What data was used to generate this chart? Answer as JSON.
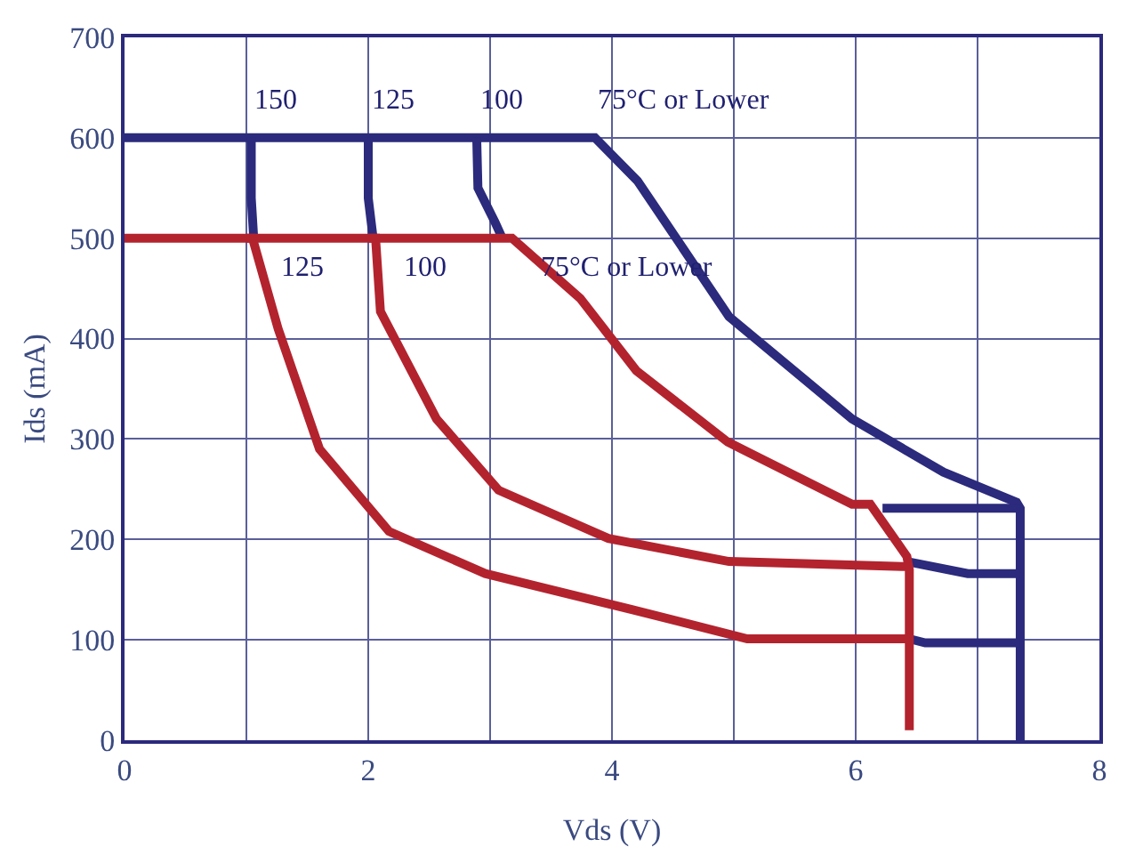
{
  "chart_data": {
    "type": "line",
    "xlabel": "Vds (V)",
    "ylabel": "Ids (mA)",
    "xlim": [
      0,
      8
    ],
    "ylim": [
      0,
      700
    ],
    "xticks": [
      0,
      {
        "value": 1,
        "label": null
      },
      2,
      {
        "value": 3,
        "label": null
      },
      4,
      {
        "value": 5,
        "label": null
      },
      6,
      {
        "value": 7,
        "label": null
      },
      8
    ],
    "yticks": [
      0,
      100,
      200,
      300,
      400,
      500,
      600,
      700
    ],
    "grid": true,
    "marker": "none",
    "line_style": "solid",
    "series": [
      {
        "color": "#2b2a7c",
        "x": [
          0,
          3.86,
          4.21,
          4.96,
          5.97,
          6.72,
          7.32,
          7.35,
          7.35
        ],
        "values": [
          600,
          600,
          557,
          422,
          320,
          267,
          237,
          231,
          0
        ]
      },
      {
        "color": "#2b2a7c",
        "x": [
          1.04,
          1.04,
          1.06
        ],
        "values": [
          600,
          540,
          500
        ]
      },
      {
        "color": "#2b2a7c",
        "x": [
          2.0,
          2.0,
          2.04
        ],
        "values": [
          600,
          540,
          500
        ]
      },
      {
        "color": "#2b2a7c",
        "x": [
          2.89,
          2.9,
          3.04,
          3.1
        ],
        "values": [
          600,
          550,
          516,
          500
        ]
      },
      {
        "color": "#2b2a7c",
        "x": [
          6.22,
          7.35
        ],
        "values": [
          231,
          231
        ]
      },
      {
        "color": "#2b2a7c",
        "x": [
          6.42,
          6.92,
          7.35
        ],
        "values": [
          178,
          166,
          166
        ]
      },
      {
        "color": "#2b2a7c",
        "x": [
          6.44,
          6.57,
          7.35
        ],
        "values": [
          101,
          97,
          97
        ]
      },
      {
        "color": "#b3232e",
        "x": [
          0,
          3.18,
          3.74,
          4.2,
          4.95,
          5.97,
          6.12,
          6.42,
          6.44,
          6.44
        ],
        "values": [
          500,
          500,
          440,
          368,
          297,
          235,
          235,
          183,
          170,
          10
        ]
      },
      {
        "color": "#b3232e",
        "x": [
          2.0,
          2.06,
          2.1,
          2.56,
          3.07,
          3.97,
          4.96,
          6.38,
          6.44
        ],
        "values": [
          500,
          500,
          427,
          320,
          249,
          201,
          178,
          173,
          173
        ]
      },
      {
        "color": "#b3232e",
        "x": [
          1.0,
          1.05,
          1.26,
          1.6,
          2.17,
          2.96,
          4.17,
          5.11,
          6.38,
          6.44
        ],
        "values": [
          500,
          500,
          410,
          290,
          208,
          166,
          130,
          101,
          101,
          101
        ]
      }
    ],
    "annotations": [
      {
        "text": "150",
        "x": 1.04,
        "y": 600
      },
      {
        "text": "125",
        "x": 2.0,
        "y": 600
      },
      {
        "text": "100",
        "x": 2.89,
        "y": 600
      },
      {
        "text": "75°C or Lower",
        "x": 3.86,
        "y": 600
      },
      {
        "text": "125",
        "x": 1.05,
        "y": 500
      },
      {
        "text": "100",
        "x": 2.06,
        "y": 500
      },
      {
        "text": "75°C or Lower",
        "x": 3.18,
        "y": 500
      }
    ]
  }
}
